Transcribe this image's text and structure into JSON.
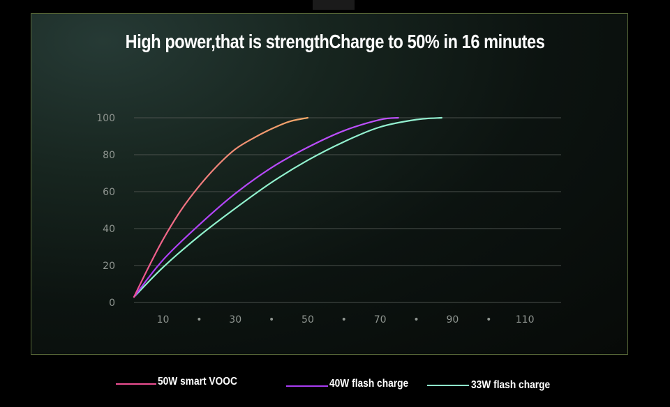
{
  "title": "High power,that is strengthCharge to 50% in 16 minutes",
  "chart_data": {
    "type": "line",
    "title": "High power,that is strengthCharge to 50% in 16 minutes",
    "xlabel": "",
    "ylabel": "",
    "x_ticks": [
      {
        "value": 10,
        "label": "10"
      },
      {
        "value": 20,
        "label": "•"
      },
      {
        "value": 30,
        "label": "30"
      },
      {
        "value": 40,
        "label": "•"
      },
      {
        "value": 50,
        "label": "50"
      },
      {
        "value": 60,
        "label": "•"
      },
      {
        "value": 70,
        "label": "70"
      },
      {
        "value": 80,
        "label": "•"
      },
      {
        "value": 90,
        "label": "90"
      },
      {
        "value": 100,
        "label": "•"
      },
      {
        "value": 110,
        "label": "110"
      }
    ],
    "y_ticks": [
      0,
      20,
      40,
      60,
      80,
      100
    ],
    "xlim": [
      2,
      120
    ],
    "ylim": [
      0,
      100
    ],
    "grid": true,
    "legend_position": "bottom",
    "series": [
      {
        "name": "50W smart VOOC",
        "color": "#ee4f93",
        "color_end": "#f3a868",
        "x": [
          2,
          6,
          10,
          15,
          20,
          25,
          30,
          35,
          40,
          45,
          50
        ],
        "y": [
          3,
          19,
          34,
          50,
          63,
          74,
          83,
          89,
          94,
          98,
          100
        ]
      },
      {
        "name": "40W flash charge",
        "color": "#a83cf2",
        "color_end": "#c052ff",
        "x": [
          2,
          10,
          20,
          30,
          40,
          50,
          60,
          70,
          75
        ],
        "y": [
          3,
          23,
          42,
          59,
          73,
          84,
          93,
          99,
          100
        ]
      },
      {
        "name": "33W flash charge",
        "color": "#8ff3cc",
        "color_end": "#93f0d0",
        "x": [
          2,
          10,
          20,
          30,
          40,
          50,
          60,
          70,
          80,
          87
        ],
        "y": [
          3,
          19,
          36,
          51,
          65,
          77,
          87,
          95,
          99,
          100
        ]
      }
    ]
  },
  "legend": [
    {
      "label": "50W smart VOOC",
      "color": "#ee4f93"
    },
    {
      "label": "40W flash charge",
      "color": "#a83cf2"
    },
    {
      "label": "33W flash charge",
      "color": "#8ff3cc"
    }
  ]
}
